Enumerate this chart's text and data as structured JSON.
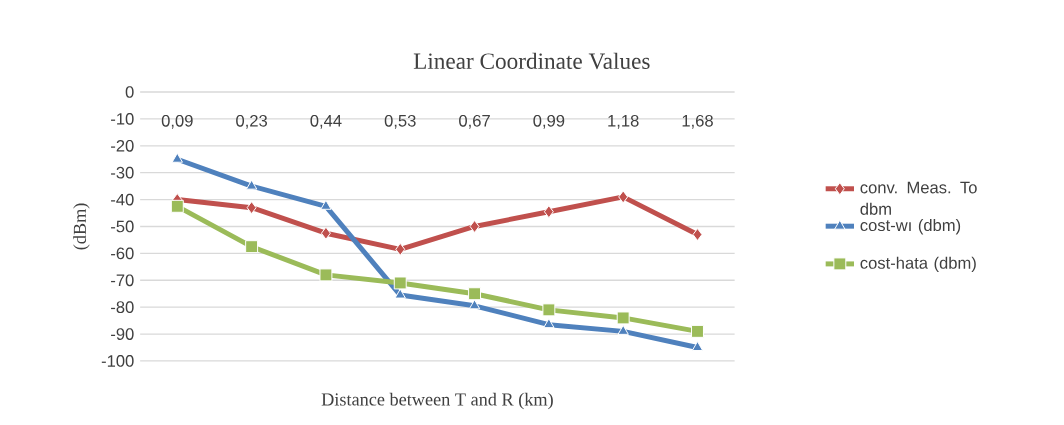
{
  "chart_data": {
    "type": "line",
    "title": "Linear Coordinate Values",
    "xlabel": "Distance between T and R (km)",
    "ylabel": "(dBm)",
    "categories": [
      "0,09",
      "0,23",
      "0,44",
      "0,53",
      "0,67",
      "0,99",
      "1,18",
      "1,68"
    ],
    "series": [
      {
        "name": "conv. Meas. To dbm",
        "color": "#c0504d",
        "marker": "diamond",
        "values": [
          -40,
          -43,
          -52.5,
          -58.5,
          -50,
          -44.5,
          -39,
          -53
        ]
      },
      {
        "name": "cost-wı (dbm)",
        "color": "#4f81bd",
        "marker": "triangle",
        "values": [
          -25,
          -35,
          -42.5,
          -75.5,
          -79.5,
          -86.5,
          -89,
          -95
        ]
      },
      {
        "name": "cost-hata (dbm)",
        "color": "#9bbb59",
        "marker": "square",
        "values": [
          -42.5,
          -57.5,
          -68,
          -71,
          -75,
          -81,
          -84,
          -89
        ]
      }
    ],
    "ylim": [
      -100,
      0
    ],
    "yticks": [
      -100,
      -90,
      -80,
      -70,
      -60,
      -50,
      -40,
      -30,
      -20,
      -10,
      0
    ],
    "grid": "y",
    "legend": "right"
  }
}
